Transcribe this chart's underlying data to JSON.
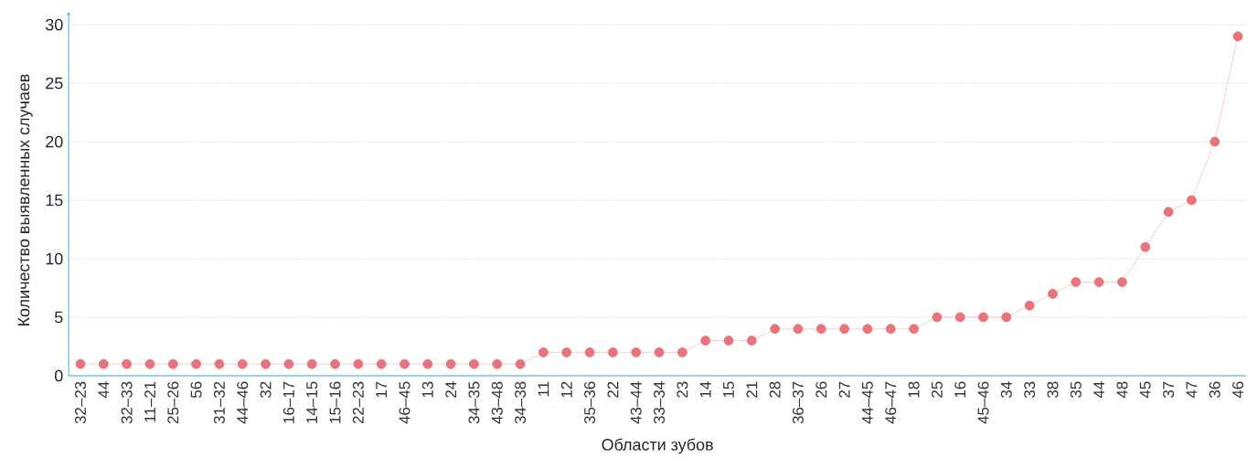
{
  "chart_data": {
    "type": "line",
    "xlabel": "Области зубов",
    "ylabel": "Количество выявленных случаев",
    "categories": [
      "32–23",
      "44",
      "32–33",
      "11–21",
      "25–26",
      "56",
      "31–32",
      "44–46",
      "32",
      "16–17",
      "14–15",
      "15–16",
      "22–23",
      "17",
      "46–45",
      "13",
      "24",
      "34–35",
      "43–48",
      "34–38",
      "11",
      "12",
      "35–36",
      "22",
      "43–44",
      "33–34",
      "23",
      "14",
      "15",
      "21",
      "28",
      "36–37",
      "26",
      "27",
      "44–45",
      "46–47",
      "18",
      "25",
      "16",
      "45–46",
      "34",
      "33",
      "38",
      "35",
      "44",
      "48",
      "45",
      "37",
      "47",
      "36",
      "46"
    ],
    "values": [
      1,
      1,
      1,
      1,
      1,
      1,
      1,
      1,
      1,
      1,
      1,
      1,
      1,
      1,
      1,
      1,
      1,
      1,
      1,
      1,
      2,
      2,
      2,
      2,
      2,
      2,
      2,
      3,
      3,
      3,
      4,
      4,
      4,
      4,
      4,
      4,
      4,
      5,
      5,
      5,
      5,
      6,
      7,
      8,
      8,
      8,
      11,
      14,
      15,
      20,
      29
    ],
    "color": "#e8737a",
    "marker": "circle",
    "line_style": "dotted",
    "grid": "y",
    "ylim": [
      0,
      30
    ],
    "yticks": [
      0,
      5,
      10,
      15,
      20,
      25,
      30
    ]
  }
}
